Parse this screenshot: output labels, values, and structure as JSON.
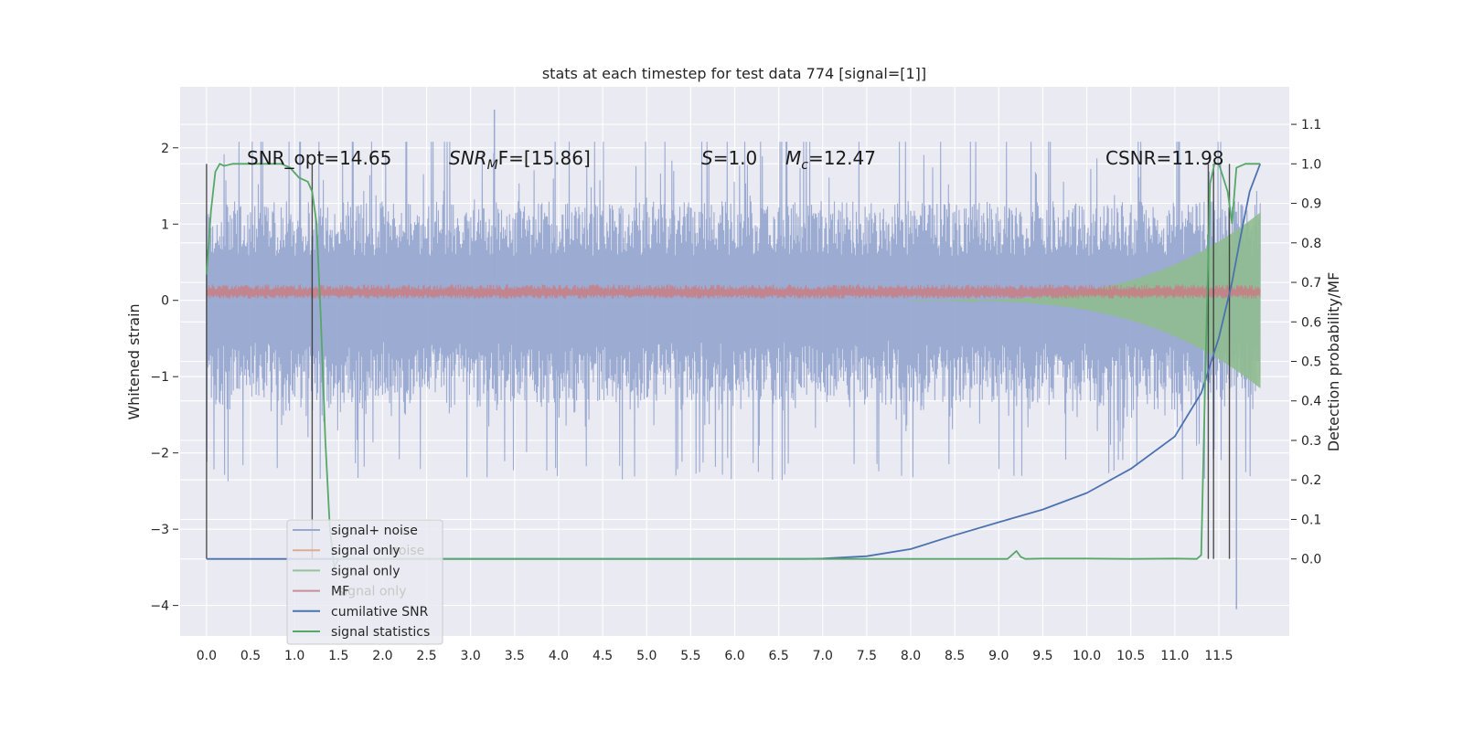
{
  "chart_data": {
    "type": "line",
    "title": "stats at each timestep for test data 774 [signal=[1]]",
    "ylabel": "Whitened strain",
    "y2label": "Detection probability/MF",
    "xlim": [
      -0.3,
      12.3
    ],
    "ylim": [
      -4.4,
      2.8
    ],
    "y2lim": [
      -0.195,
      1.195
    ],
    "grid": true,
    "legend_position": "lower-left",
    "x_ticks": [
      "0.0",
      "0.5",
      "1.0",
      "1.5",
      "2.0",
      "2.5",
      "3.0",
      "3.5",
      "4.0",
      "4.5",
      "5.0",
      "5.5",
      "6.0",
      "6.5",
      "7.0",
      "7.5",
      "8.0",
      "8.5",
      "9.0",
      "9.5",
      "10.0",
      "10.5",
      "11.0",
      "11.5"
    ],
    "y_ticks": [
      "−4",
      "−3",
      "−2",
      "−1",
      "0",
      "1",
      "2"
    ],
    "y2_ticks": [
      "0.0",
      "0.1",
      "0.2",
      "0.3",
      "0.4",
      "0.5",
      "0.6",
      "0.7",
      "0.8",
      "0.9",
      "1.0",
      "1.1"
    ],
    "annotations": {
      "snr_opt": "SNR_opt=14.65",
      "snr_mf_label": "SNR",
      "snr_mf_sub": "M",
      "snr_mf_rest": "F=[15.86]",
      "s_label": "S",
      "s_rest": "=1.0",
      "mc_label": "M",
      "mc_sub": "c",
      "mc_rest": "=12.47",
      "csnr": "CSNR=11.98"
    },
    "legend": [
      {
        "label": "signal+ noise",
        "color": "#98a8d0"
      },
      {
        "label": "signal only",
        "color": "#e0ab8f",
        "ghost": "noise"
      },
      {
        "label": "signal only",
        "color": "#94c49c"
      },
      {
        "label": "MF",
        "color": "#c98e97",
        "ghost": "signal only"
      },
      {
        "label": "cumilative SNR",
        "color": "#4c72b0"
      },
      {
        "label": "signal statistics",
        "color": "#55a868"
      }
    ],
    "series": [
      {
        "name": "signal+ noise",
        "axis": "left",
        "color": "#98a8d0",
        "x_range": [
          0.0,
          11.97
        ],
        "envelope_upper": 1.3,
        "envelope_lower": -1.3,
        "peak_max": 2.5,
        "peak_min": -4.05
      },
      {
        "name": "MF",
        "axis": "left",
        "color": "#c77f86",
        "x_range": [
          0.0,
          11.97
        ],
        "envelope_upper": 0.2,
        "envelope_lower": 0.05
      },
      {
        "name": "signal only",
        "axis": "left",
        "color": "#8fbc8f",
        "x_range": [
          8.0,
          11.97
        ],
        "amplitude_start": 0.0,
        "amplitude_end": 1.15
      },
      {
        "name": "cumilative SNR",
        "axis": "right",
        "color": "#4c72b0",
        "x": [
          0.0,
          6.8,
          7.0,
          7.5,
          8.0,
          8.5,
          9.0,
          9.5,
          10.0,
          10.5,
          11.0,
          11.3,
          11.5,
          11.65,
          11.75,
          11.85,
          11.97
        ],
        "y": [
          0.0,
          0.0,
          0.001,
          0.007,
          0.025,
          0.06,
          0.093,
          0.125,
          0.167,
          0.228,
          0.31,
          0.42,
          0.56,
          0.7,
          0.82,
          0.93,
          1.0
        ]
      },
      {
        "name": "signal statistics",
        "axis": "right",
        "color": "#55a868",
        "x": [
          0.0,
          0.05,
          0.1,
          0.15,
          0.2,
          0.3,
          0.5,
          0.7,
          0.85,
          0.95,
          1.05,
          1.15,
          1.2,
          1.25,
          1.3,
          1.35,
          1.4,
          1.45,
          1.5,
          9.0,
          9.1,
          9.2,
          9.25,
          9.3,
          9.5,
          10.0,
          10.5,
          11.0,
          11.25,
          11.3,
          11.35,
          11.4,
          11.45,
          11.5,
          11.6,
          11.65,
          11.7,
          11.8,
          11.97
        ],
        "y": [
          0.72,
          0.88,
          0.98,
          1.0,
          0.995,
          1.0,
          1.0,
          1.0,
          1.0,
          0.99,
          0.965,
          0.955,
          0.93,
          0.85,
          0.6,
          0.3,
          0.08,
          -0.02,
          0.0,
          0.0,
          0.0,
          0.02,
          0.005,
          0.0,
          0.001,
          0.001,
          0.0,
          0.001,
          0.0,
          0.01,
          0.5,
          0.95,
          1.0,
          1.0,
          0.93,
          0.85,
          0.99,
          1.0,
          1.0
        ]
      }
    ],
    "vertical_lines": [
      0.0,
      1.2,
      11.38,
      11.44,
      11.62
    ]
  }
}
